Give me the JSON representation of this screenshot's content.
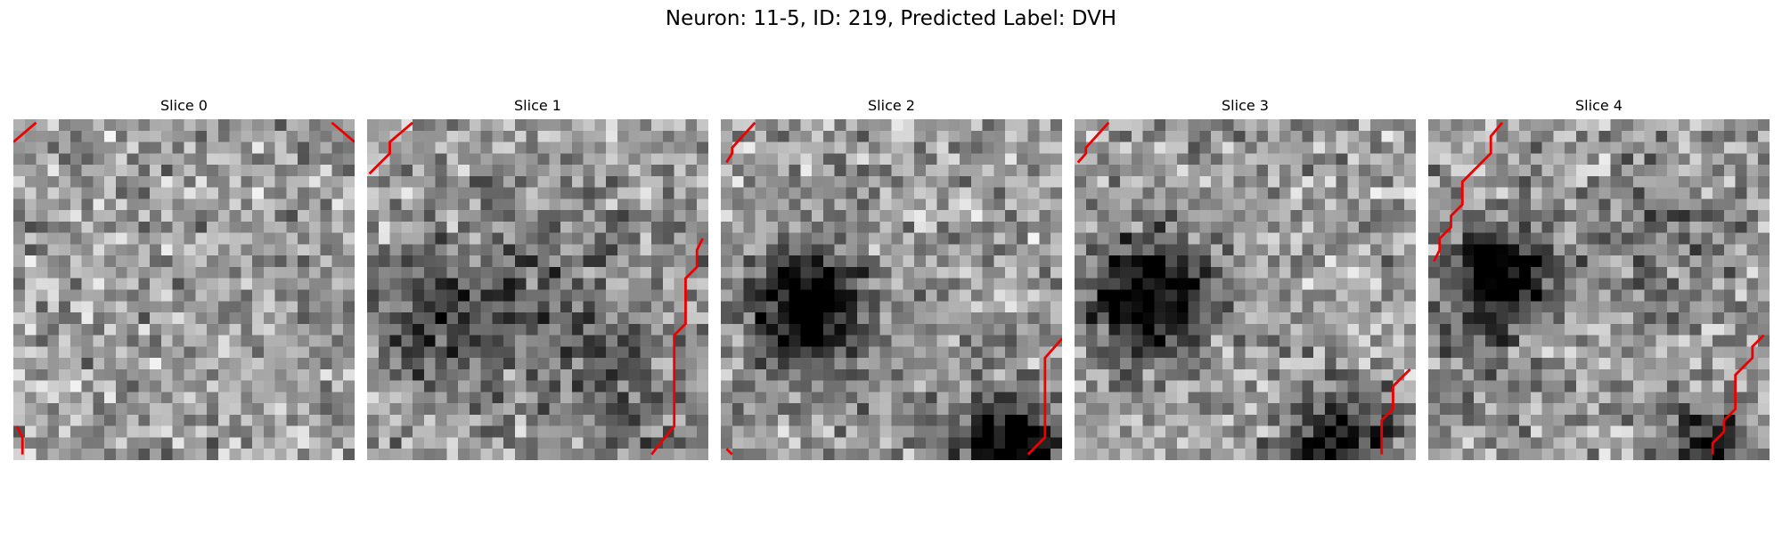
{
  "title": "Neuron: 11-5, ID: 219, Predicted Label: DVH",
  "panels": [
    {
      "title": "Slice 0"
    },
    {
      "title": "Slice 1"
    },
    {
      "title": "Slice 2"
    },
    {
      "title": "Slice 3"
    },
    {
      "title": "Slice 4"
    }
  ]
}
